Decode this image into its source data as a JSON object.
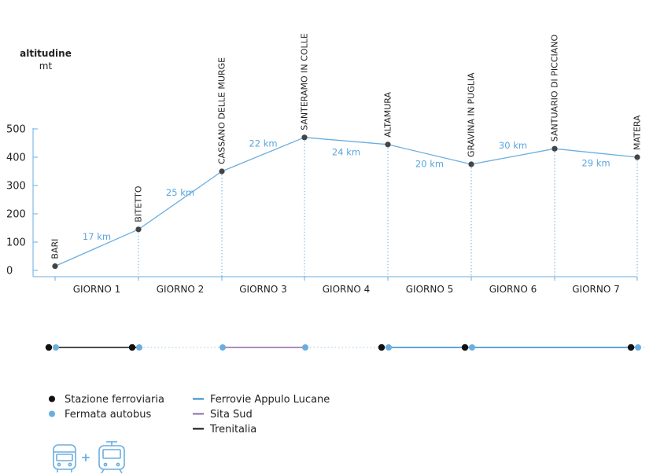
{
  "chart_data": {
    "type": "line",
    "ylabel": "altitudine",
    "yunit": "mt",
    "ylim": [
      0,
      500
    ],
    "yticks": [
      "0",
      "100",
      "200",
      "300",
      "400",
      "500"
    ],
    "stops": [
      {
        "name": "BARI",
        "altitude": 15
      },
      {
        "name": "BITETTO",
        "altitude": 145
      },
      {
        "name": "CASSANO DELLE MURGE",
        "altitude": 350
      },
      {
        "name": "SANTERAMO IN COLLE",
        "altitude": 470
      },
      {
        "name": "ALTAMURA",
        "altitude": 445
      },
      {
        "name": "GRAVINA IN PUGLIA",
        "altitude": 375
      },
      {
        "name": "SANTUARIO DI PICCIANO",
        "altitude": 430
      },
      {
        "name": "MATERA",
        "altitude": 400
      }
    ],
    "distances": [
      "17 km",
      "25 km",
      "22 km",
      "24 km",
      "20 km",
      "30 km",
      "29 km"
    ],
    "days": [
      "GIORNO 1",
      "GIORNO 2",
      "GIORNO 3",
      "GIORNO 4",
      "GIORNO 5",
      "GIORNO 6",
      "GIORNO 7"
    ],
    "transport": {
      "segments": [
        "Trenitalia",
        "none",
        "Sita Sud",
        "none",
        "Ferrovie Appulo Lucane",
        "Ferrovie Appulo Lucane",
        "Ferrovie Appulo Lucane"
      ],
      "train_stations": [
        "BARI",
        "BITETTO",
        "ALTAMURA",
        "GRAVINA IN PUGLIA",
        "MATERA"
      ],
      "bus_stops": [
        "BARI",
        "BITETTO",
        "CASSANO DELLE MURGE",
        "SANTERAMO IN COLLE",
        "ALTAMURA",
        "GRAVINA IN PUGLIA",
        "MATERA"
      ]
    }
  },
  "legend": {
    "items": [
      {
        "label": "Stazione ferroviaria",
        "kind": "dot",
        "color": "#111111"
      },
      {
        "label": "Fermata autobus",
        "kind": "dot",
        "color": "#6aaee0"
      },
      {
        "label": "Ferrovie Appulo Lucane",
        "kind": "line",
        "color": "#2a8acb"
      },
      {
        "label": "Sita Sud",
        "kind": "line",
        "color": "#8e6aa8"
      },
      {
        "label": "Trenitalia",
        "kind": "line",
        "color": "#111111"
      }
    ],
    "icons": [
      "bus-icon",
      "train-icon"
    ],
    "plus": "+"
  },
  "colors": {
    "line": "#6aaee0",
    "distance_text": "#5aa6dd",
    "point": "#444444",
    "fal": "#2a8acb",
    "sita": "#8e6aa8",
    "trenitalia": "#111111",
    "bus_stop": "#6aaee0",
    "station": "#111111"
  }
}
